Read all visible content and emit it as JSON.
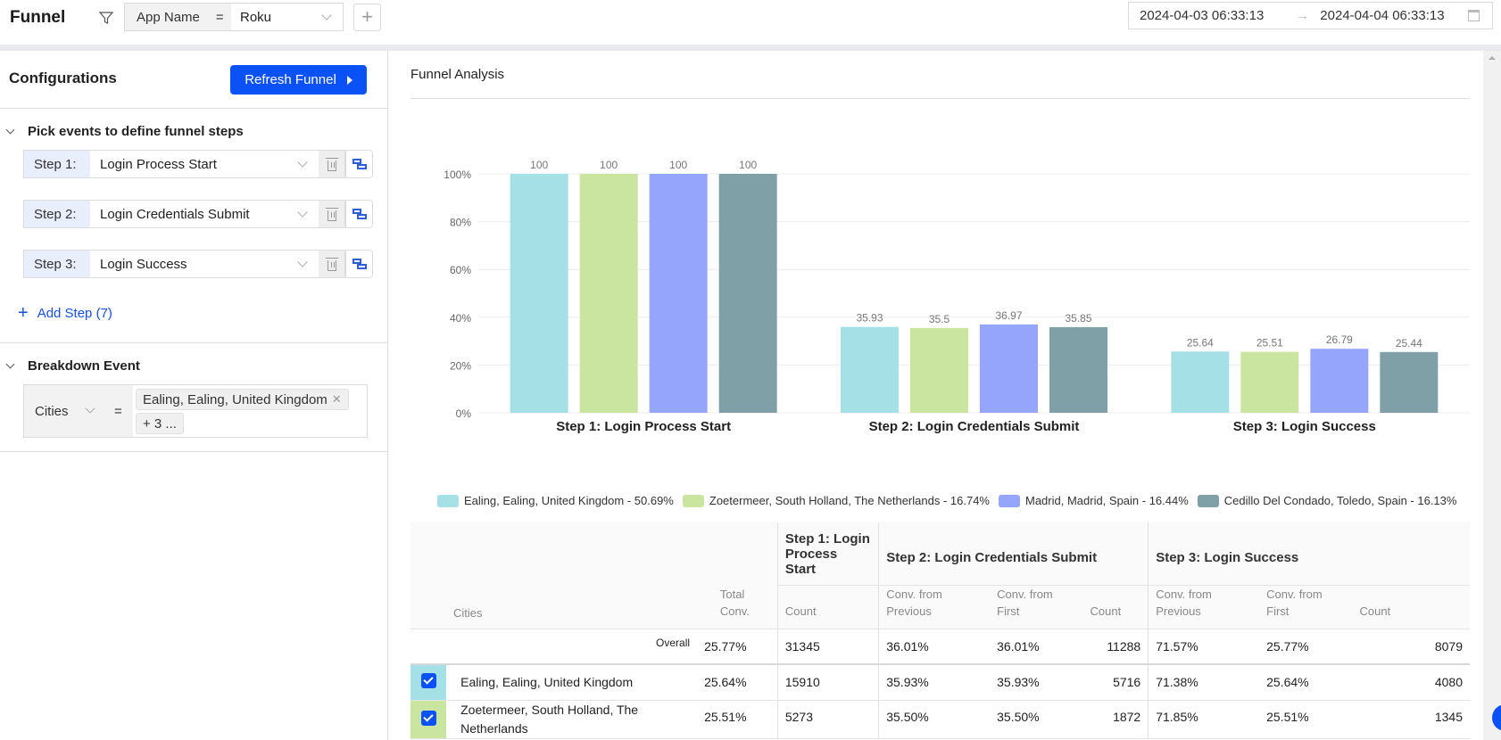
{
  "header": {
    "title": "Funnel",
    "filter": {
      "key": "App Name",
      "op": "=",
      "value": "Roku"
    },
    "date_range": {
      "start": "2024-04-03 06:33:13",
      "arrow": "→",
      "end": "2024-04-04 06:33:13"
    }
  },
  "config": {
    "title": "Configurations",
    "refresh_label": "Refresh Funnel",
    "steps_section": "Pick events to define funnel steps",
    "steps": [
      {
        "label": "Step 1:",
        "event": "Login Process Start"
      },
      {
        "label": "Step 2:",
        "event": "Login Credentials Submit"
      },
      {
        "label": "Step 3:",
        "event": "Login Success"
      }
    ],
    "add_step_label": "Add Step (7)",
    "breakdown_section": "Breakdown Event",
    "breakdown": {
      "key": "Cities",
      "op": "=",
      "tag": "Ealing, Ealing, United Kingdom",
      "more": "+ 3 ..."
    }
  },
  "analysis": {
    "title": "Funnel Analysis"
  },
  "chart_data": {
    "type": "bar",
    "title": "Funnel Analysis",
    "categories": [
      "Step 1: Login Process Start",
      "Step 2: Login Credentials Submit",
      "Step 3: Login Success"
    ],
    "ylim": [
      0,
      100
    ],
    "yticks": [
      "0%",
      "20%",
      "40%",
      "60%",
      "80%",
      "100%"
    ],
    "ytick_values": [
      0,
      20,
      40,
      60,
      80,
      100
    ],
    "grid": true,
    "legend_position": "bottom",
    "series": [
      {
        "name": "Ealing, Ealing, United Kingdom - 50.69%",
        "color": "#a5e0e6",
        "values": [
          100,
          35.93,
          25.64
        ]
      },
      {
        "name": "Zoetermeer, South Holland, The Netherlands - 16.74%",
        "color": "#c9e5a0",
        "values": [
          100,
          35.5,
          25.51
        ]
      },
      {
        "name": "Madrid, Madrid, Spain - 16.44%",
        "color": "#94a5fb",
        "values": [
          100,
          36.97,
          26.79
        ]
      },
      {
        "name": "Cedillo Del Condado, Toledo, Spain - 16.13%",
        "color": "#7ea0a6",
        "values": [
          100,
          35.85,
          25.44
        ]
      }
    ]
  },
  "table": {
    "col_cities": "Cities",
    "col_total": "Total Conv.",
    "steps": [
      {
        "title": "Step 1: Login Process Start",
        "subs": [
          "Count"
        ]
      },
      {
        "title": "Step 2: Login Credentials Submit",
        "subs": [
          "Conv. from Previous",
          "Conv. from First",
          "Count"
        ]
      },
      {
        "title": "Step 3: Login Success",
        "subs": [
          "Conv. from Previous",
          "Conv. from First",
          "Count"
        ]
      }
    ],
    "overall": {
      "label": "Overall",
      "cells": [
        "25.77%",
        "31345",
        "36.01%",
        "36.01%",
        "11288",
        "71.57%",
        "25.77%",
        "8079"
      ]
    },
    "rows": [
      {
        "name": "Ealing, Ealing, United Kingdom",
        "color": "#a5e0e6",
        "checked": true,
        "cells": [
          "25.64%",
          "15910",
          "35.93%",
          "35.93%",
          "5716",
          "71.38%",
          "25.64%",
          "4080"
        ]
      },
      {
        "name": "Zoetermeer, South Holland, The Netherlands",
        "color": "#c9e5a0",
        "checked": true,
        "cells": [
          "25.51%",
          "5273",
          "35.50%",
          "35.50%",
          "1872",
          "71.85%",
          "25.51%",
          "1345"
        ]
      }
    ]
  }
}
